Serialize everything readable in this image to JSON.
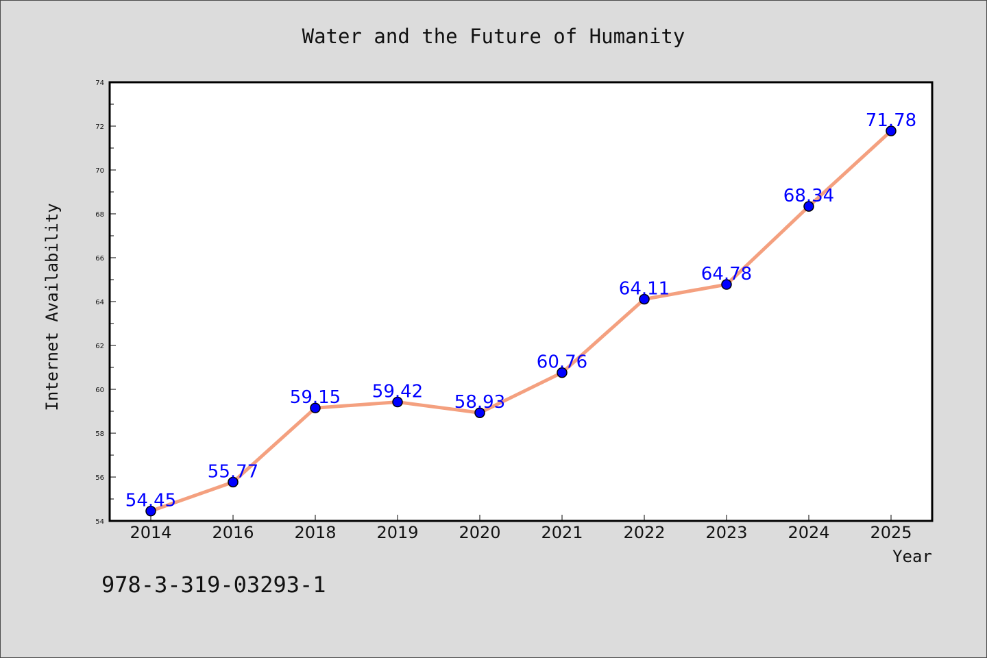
{
  "chart_data": {
    "type": "line",
    "title": "Water and the Future of Humanity",
    "xlabel": "Year",
    "ylabel": "Internet Availability",
    "categories": [
      "2014",
      "2016",
      "2018",
      "2019",
      "2020",
      "2021",
      "2022",
      "2023",
      "2024",
      "2025"
    ],
    "series": [
      {
        "values": [
          54.45,
          55.77,
          59.15,
          59.42,
          58.93,
          60.76,
          64.11,
          64.78,
          68.34,
          71.78
        ],
        "line_color": "#f4a07f",
        "marker_color": "#0000ff"
      }
    ],
    "data_labels": [
      "54.45",
      "55.77",
      "59.15",
      "59.42",
      "58.93",
      "60.76",
      "64.11",
      "64.78",
      "68.34",
      "71.78"
    ],
    "ylim": [
      54,
      74
    ],
    "yticks": [
      "54",
      "56",
      "58",
      "60",
      "62",
      "64",
      "66",
      "68",
      "70",
      "72",
      "74"
    ],
    "grid": false,
    "legend": "none"
  },
  "footer": {
    "isbn": "978-3-319-03293-1"
  }
}
